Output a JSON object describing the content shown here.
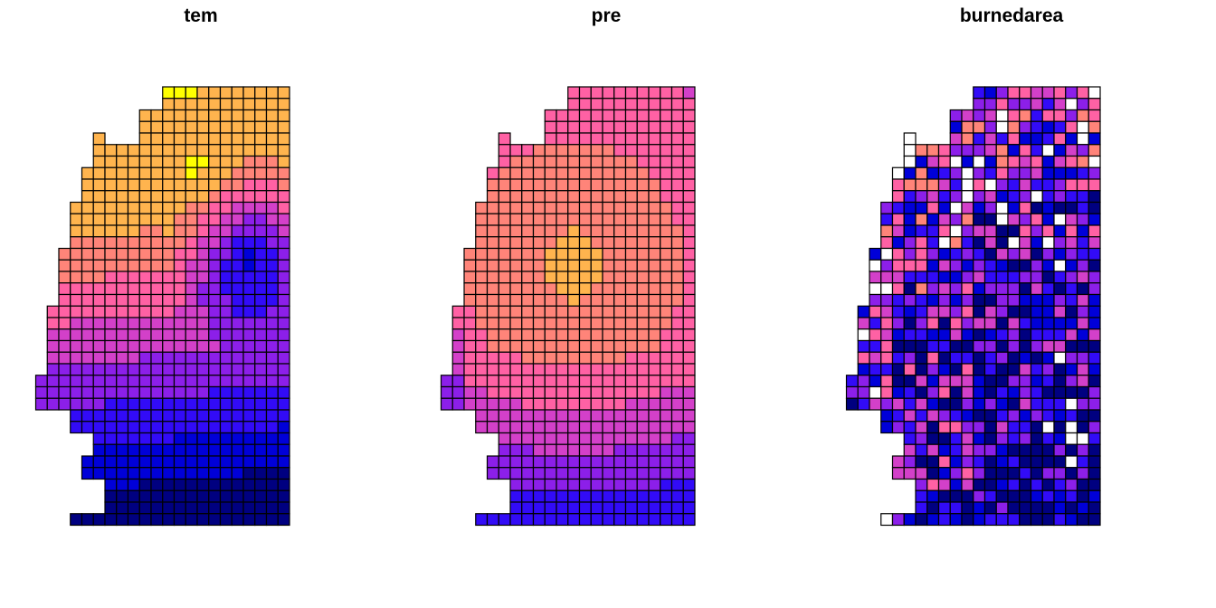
{
  "chart_data": [
    {
      "type": "heatmap",
      "title": "tem"
    },
    {
      "type": "heatmap",
      "title": "pre"
    },
    {
      "type": "heatmap",
      "title": "burnedarea"
    }
  ]
}
